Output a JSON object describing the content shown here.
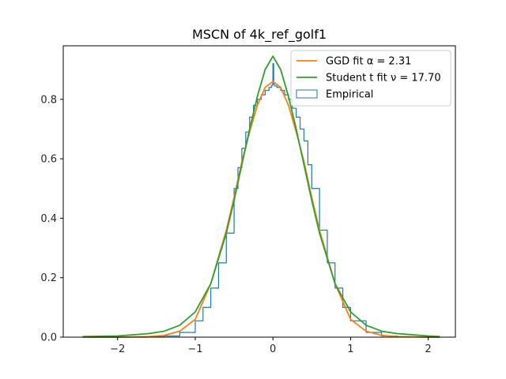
{
  "chart_data": {
    "type": "line",
    "title": "MSCN of 4k_ref_golf1",
    "xlabel": "",
    "ylabel": "",
    "xlim": [
      -2.7,
      2.35
    ],
    "ylim": [
      0.0,
      0.98
    ],
    "xticks": [
      -2,
      -1,
      0,
      1,
      2
    ],
    "xtick_labels": [
      "−2",
      "−1",
      "0",
      "1",
      "2"
    ],
    "yticks": [
      0.0,
      0.2,
      0.4,
      0.6,
      0.8
    ],
    "ytick_labels": [
      "0.0",
      "0.2",
      "0.4",
      "0.6",
      "0.8"
    ],
    "grid": false,
    "legend_position": "top-right",
    "series": [
      {
        "name": "GGD fit α = 2.31",
        "kind": "line",
        "color": "#ff7f0e",
        "alpha": 2.31,
        "x": [
          -2.45,
          -2.0,
          -1.6,
          -1.4,
          -1.2,
          -1.0,
          -0.8,
          -0.6,
          -0.5,
          -0.4,
          -0.3,
          -0.2,
          -0.1,
          0.0,
          0.1,
          0.2,
          0.3,
          0.4,
          0.5,
          0.6,
          0.8,
          1.0,
          1.2,
          1.4,
          1.6,
          2.0,
          2.15
        ],
        "y": [
          0.0,
          0.0,
          0.002,
          0.006,
          0.02,
          0.06,
          0.18,
          0.36,
          0.47,
          0.59,
          0.69,
          0.78,
          0.84,
          0.86,
          0.84,
          0.78,
          0.69,
          0.59,
          0.47,
          0.36,
          0.18,
          0.06,
          0.02,
          0.006,
          0.002,
          0.0,
          0.0
        ]
      },
      {
        "name": "Student t fit ν = 17.70",
        "kind": "line",
        "color": "#2ca02c",
        "nu": 17.7,
        "x": [
          -2.45,
          -2.0,
          -1.6,
          -1.4,
          -1.2,
          -1.0,
          -0.8,
          -0.6,
          -0.5,
          -0.4,
          -0.3,
          -0.2,
          -0.1,
          0.0,
          0.1,
          0.2,
          0.3,
          0.4,
          0.5,
          0.6,
          0.8,
          1.0,
          1.2,
          1.4,
          1.6,
          2.0,
          2.15
        ],
        "y": [
          0.002,
          0.004,
          0.012,
          0.02,
          0.04,
          0.085,
          0.18,
          0.35,
          0.46,
          0.58,
          0.7,
          0.81,
          0.9,
          0.945,
          0.9,
          0.81,
          0.7,
          0.58,
          0.46,
          0.35,
          0.18,
          0.085,
          0.04,
          0.02,
          0.012,
          0.004,
          0.002
        ]
      },
      {
        "name": "Empirical",
        "kind": "step",
        "color": "#1f77b4",
        "x": [
          -2.45,
          -2.0,
          -1.6,
          -1.4,
          -1.2,
          -1.0,
          -0.9,
          -0.8,
          -0.7,
          -0.6,
          -0.5,
          -0.45,
          -0.4,
          -0.35,
          -0.3,
          -0.25,
          -0.2,
          -0.15,
          -0.1,
          -0.05,
          -0.02,
          -0.01,
          0.0,
          0.01,
          0.02,
          0.05,
          0.1,
          0.15,
          0.2,
          0.25,
          0.3,
          0.35,
          0.4,
          0.45,
          0.5,
          0.6,
          0.7,
          0.8,
          0.9,
          1.0,
          1.2,
          1.4,
          1.6,
          2.0,
          2.15
        ],
        "y": [
          0.0,
          0.0,
          0.001,
          0.004,
          0.016,
          0.055,
          0.1,
          0.165,
          0.25,
          0.35,
          0.5,
          0.57,
          0.635,
          0.69,
          0.74,
          0.78,
          0.8,
          0.815,
          0.83,
          0.84,
          0.845,
          0.85,
          0.92,
          0.85,
          0.845,
          0.84,
          0.83,
          0.815,
          0.8,
          0.77,
          0.74,
          0.7,
          0.66,
          0.58,
          0.5,
          0.36,
          0.25,
          0.165,
          0.1,
          0.055,
          0.016,
          0.004,
          0.001,
          0.0,
          0.0
        ]
      }
    ]
  }
}
